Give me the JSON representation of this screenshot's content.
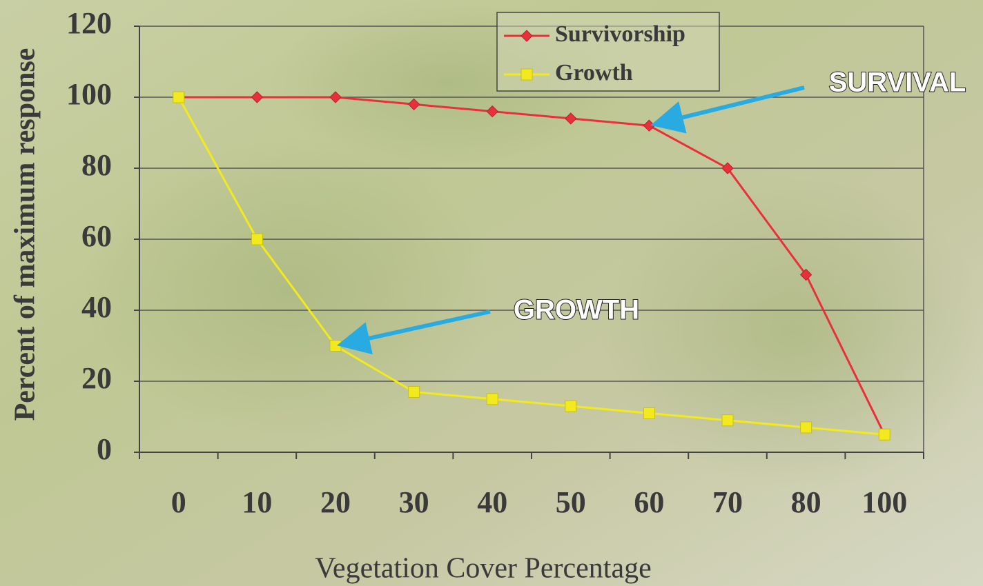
{
  "chart_data": {
    "type": "line",
    "y_label": "Percent of maximum response",
    "x_label": "Vegetation Cover Percentage",
    "categories": [
      "0",
      "10",
      "20",
      "30",
      "40",
      "50",
      "60",
      "70",
      "80",
      "100"
    ],
    "series": [
      {
        "name": "Survivorship",
        "color": "#e8303a",
        "marker": "diamond",
        "values": [
          100,
          100,
          100,
          98,
          96,
          94,
          92,
          80,
          50,
          5
        ]
      },
      {
        "name": "Growth",
        "color": "#f2ea1e",
        "marker": "square",
        "values": [
          100,
          60,
          30,
          17,
          15,
          13,
          11,
          9,
          7,
          5
        ]
      }
    ],
    "ylim": [
      0,
      120
    ],
    "yticks": [
      0,
      20,
      40,
      60,
      80,
      100,
      120
    ],
    "grid": true,
    "legend": "top",
    "annotations": [
      {
        "text": "SURVIVAL",
        "series": 0,
        "index": 6
      },
      {
        "text": "GROWTH",
        "series": 1,
        "index": 2
      }
    ]
  }
}
